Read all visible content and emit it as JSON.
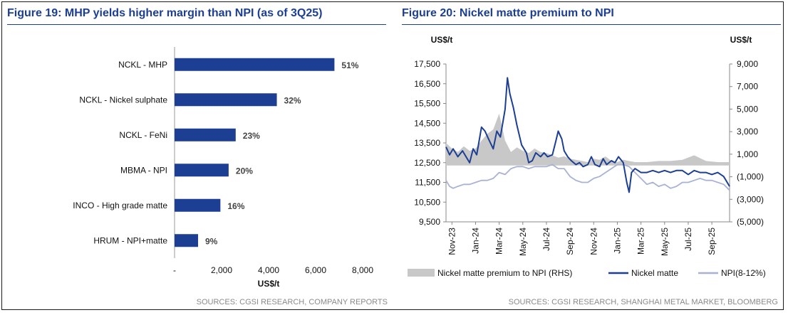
{
  "chart_data": [
    {
      "type": "bar",
      "orientation": "horizontal",
      "title": "Figure 19: MHP yields higher margin than NPI (as of 3Q25)",
      "categories": [
        "NCKL - MHP",
        "NCKL - Nickel sulphate",
        "NCKL - FeNi",
        "MBMA - NPI",
        "INCO - High grade matte",
        "HRUM - NPI+matte"
      ],
      "values": [
        6800,
        4350,
        2600,
        2300,
        1950,
        1000
      ],
      "data_labels": [
        "51%",
        "32%",
        "23%",
        "20%",
        "16%",
        "9%"
      ],
      "xlabel": "US$/t",
      "xlim": [
        0,
        8000
      ],
      "xticks": [
        "-",
        "2,000",
        "4,000",
        "6,000",
        "8,000"
      ],
      "color": "#1c3f94",
      "source": "SOURCES: CGSI RESEARCH, COMPANY REPORTS"
    },
    {
      "type": "line",
      "title": "Figure 20: Nickel matte premium to NPI",
      "left_axis": {
        "unit": "US$/t",
        "ylim": [
          9500,
          17500
        ],
        "ticks": [
          "17,500",
          "16,500",
          "15,500",
          "14,500",
          "13,500",
          "12,500",
          "11,500",
          "10,500",
          "9,500"
        ]
      },
      "right_axis": {
        "unit": "US$/t",
        "ylim": [
          -5000,
          9000
        ],
        "ticks": [
          "9,000",
          "7,000",
          "5,000",
          "3,000",
          "1,000",
          "(1,000)",
          "(3,000)",
          "(5,000)"
        ]
      },
      "x_ticks": [
        "Nov-23",
        "Jan-24",
        "Mar-24",
        "May-24",
        "Jul-24",
        "Sep-24",
        "Nov-24",
        "Jan-25",
        "Mar-25",
        "May-25",
        "Jul-25",
        "Sep-25"
      ],
      "x_range": [
        0,
        24
      ],
      "legend_position": "bottom",
      "series": [
        {
          "name": "Nickel matte premium to NPI (RHS)",
          "kind": "area",
          "axis": "right",
          "color": "#c8c8c8",
          "points": [
            [
              0,
              2000
            ],
            [
              0.5,
              1500
            ],
            [
              1,
              1200
            ],
            [
              1.5,
              1700
            ],
            [
              2,
              1300
            ],
            [
              2.5,
              1500
            ],
            [
              3,
              2200
            ],
            [
              3.5,
              2800
            ],
            [
              4,
              3200
            ],
            [
              4.5,
              4600
            ],
            [
              5,
              2200
            ],
            [
              5.5,
              1200
            ],
            [
              6,
              1600
            ],
            [
              6.5,
              1300
            ],
            [
              7,
              1100
            ],
            [
              7.5,
              1500
            ],
            [
              8,
              1200
            ],
            [
              8.5,
              1100
            ],
            [
              9,
              900
            ],
            [
              9.5,
              700
            ],
            [
              10,
              800
            ],
            [
              10.5,
              600
            ],
            [
              11,
              500
            ],
            [
              11.5,
              400
            ],
            [
              12,
              300
            ],
            [
              12.5,
              600
            ],
            [
              13,
              500
            ],
            [
              13.5,
              800
            ],
            [
              14,
              400
            ],
            [
              14.5,
              300
            ],
            [
              15,
              500
            ],
            [
              16,
              300
            ],
            [
              17,
              300
            ],
            [
              18,
              400
            ],
            [
              19,
              400
            ],
            [
              20,
              500
            ],
            [
              21,
              900
            ],
            [
              22,
              400
            ],
            [
              23,
              300
            ],
            [
              23.5,
              300
            ],
            [
              24,
              300
            ]
          ]
        },
        {
          "name": "Nickel matte",
          "kind": "line",
          "axis": "left",
          "color": "#1c3f94",
          "points": [
            [
              0,
              13300
            ],
            [
              0.3,
              12900
            ],
            [
              0.6,
              13200
            ],
            [
              1,
              12800
            ],
            [
              1.4,
              13100
            ],
            [
              1.8,
              12700
            ],
            [
              2,
              12500
            ],
            [
              2.3,
              13200
            ],
            [
              2.6,
              12900
            ],
            [
              3,
              14300
            ],
            [
              3.3,
              14100
            ],
            [
              3.6,
              13700
            ],
            [
              4,
              13200
            ],
            [
              4.3,
              14100
            ],
            [
              4.6,
              13800
            ],
            [
              5,
              15200
            ],
            [
              5.2,
              16800
            ],
            [
              5.4,
              16000
            ],
            [
              5.7,
              15300
            ],
            [
              6,
              14400
            ],
            [
              6.4,
              13400
            ],
            [
              6.8,
              13000
            ],
            [
              7,
              12500
            ],
            [
              7.3,
              12600
            ],
            [
              7.6,
              13000
            ],
            [
              8,
              12800
            ],
            [
              8.3,
              13000
            ],
            [
              8.6,
              12800
            ],
            [
              9,
              12900
            ],
            [
              9.3,
              13600
            ],
            [
              9.5,
              14100
            ],
            [
              9.8,
              13700
            ],
            [
              10,
              13100
            ],
            [
              10.3,
              12800
            ],
            [
              10.6,
              12600
            ],
            [
              11,
              12400
            ],
            [
              11.3,
              12500
            ],
            [
              11.6,
              12300
            ],
            [
              12,
              12400
            ],
            [
              12.3,
              12800
            ],
            [
              12.6,
              12400
            ],
            [
              13,
              12300
            ],
            [
              13.3,
              12700
            ],
            [
              13.6,
              12400
            ],
            [
              14,
              12600
            ],
            [
              14.3,
              12500
            ],
            [
              14.6,
              12800
            ],
            [
              15,
              12500
            ],
            [
              15.3,
              11500
            ],
            [
              15.5,
              11000
            ],
            [
              15.7,
              12000
            ],
            [
              16,
              12200
            ],
            [
              16.5,
              12000
            ],
            [
              17,
              12000
            ],
            [
              17.5,
              12100
            ],
            [
              18,
              12000
            ],
            [
              18.5,
              12100
            ],
            [
              19,
              12000
            ],
            [
              19.5,
              12100
            ],
            [
              20,
              12100
            ],
            [
              20.5,
              11900
            ],
            [
              21,
              12100
            ],
            [
              21.5,
              12000
            ],
            [
              22,
              12000
            ],
            [
              22.5,
              11900
            ],
            [
              23,
              12000
            ],
            [
              23.5,
              11800
            ],
            [
              24,
              11300
            ]
          ]
        },
        {
          "name": "NPI(8-12%)",
          "kind": "line",
          "axis": "left",
          "color": "#a9b2d4",
          "points": [
            [
              0,
              11600
            ],
            [
              0.3,
              11300
            ],
            [
              0.6,
              11200
            ],
            [
              1,
              11300
            ],
            [
              1.5,
              11400
            ],
            [
              2,
              11400
            ],
            [
              2.5,
              11500
            ],
            [
              3,
              11600
            ],
            [
              3.5,
              11600
            ],
            [
              4,
              11700
            ],
            [
              4.5,
              12000
            ],
            [
              5,
              11900
            ],
            [
              5.5,
              12200
            ],
            [
              6,
              12300
            ],
            [
              6.5,
              12300
            ],
            [
              7,
              12200
            ],
            [
              7.5,
              12300
            ],
            [
              8,
              12300
            ],
            [
              8.5,
              12300
            ],
            [
              9,
              12400
            ],
            [
              9.5,
              12200
            ],
            [
              10,
              12200
            ],
            [
              10.5,
              11800
            ],
            [
              11,
              11600
            ],
            [
              11.5,
              11500
            ],
            [
              12,
              11500
            ],
            [
              12.5,
              11700
            ],
            [
              13,
              11800
            ],
            [
              13.5,
              12000
            ],
            [
              14,
              12200
            ],
            [
              14.5,
              12400
            ],
            [
              15,
              12400
            ],
            [
              15.5,
              12300
            ],
            [
              16,
              12000
            ],
            [
              16.5,
              11700
            ],
            [
              17,
              11400
            ],
            [
              17.5,
              11500
            ],
            [
              18,
              11300
            ],
            [
              18.5,
              11400
            ],
            [
              19,
              11200
            ],
            [
              19.5,
              11300
            ],
            [
              20,
              11500
            ],
            [
              20.5,
              11500
            ],
            [
              21,
              11600
            ],
            [
              21.5,
              11700
            ],
            [
              22,
              11600
            ],
            [
              22.5,
              11600
            ],
            [
              23,
              11500
            ],
            [
              23.5,
              11400
            ],
            [
              24,
              11100
            ]
          ]
        }
      ],
      "source": "SOURCES: CGSI RESEARCH, SHANGHAI METAL MARKET, BLOOMBERG"
    }
  ]
}
